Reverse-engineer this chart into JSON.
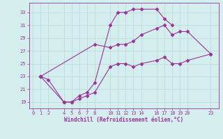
{
  "xlabel": "Windchill (Refroidissement éolien,°C)",
  "bg_color": "#d4eeee",
  "line_color": "#993399",
  "grid_color": "#b8d8d8",
  "xlim": [
    -0.5,
    24
  ],
  "ylim": [
    18.0,
    34.5
  ],
  "xticks": [
    0,
    1,
    2,
    4,
    5,
    6,
    7,
    8,
    10,
    11,
    12,
    13,
    14,
    16,
    17,
    18,
    19,
    20,
    23
  ],
  "yticks": [
    19,
    21,
    23,
    25,
    27,
    29,
    31,
    33
  ],
  "curve1_x": [
    1,
    2,
    4,
    5,
    6,
    7,
    8,
    10,
    11,
    12,
    13,
    14,
    16,
    17,
    18
  ],
  "curve1_y": [
    23,
    22.5,
    19,
    19,
    20,
    20.5,
    22,
    31,
    33,
    33,
    33.5,
    33.5,
    33.5,
    32,
    31
  ],
  "curve2_x": [
    1,
    4,
    5,
    6,
    7,
    8,
    10,
    11,
    12,
    13,
    14,
    16,
    17,
    18,
    19,
    20,
    23
  ],
  "curve2_y": [
    23,
    19,
    19,
    19.5,
    20,
    20.5,
    24.5,
    25,
    25,
    24.5,
    25,
    25.5,
    26,
    25,
    25,
    25.5,
    26.5
  ],
  "curve3_x": [
    1,
    8,
    10,
    11,
    12,
    13,
    14,
    16,
    17,
    18,
    19,
    20,
    23
  ],
  "curve3_y": [
    23,
    28,
    27.5,
    28,
    28,
    28.5,
    29.5,
    30.5,
    31,
    29.5,
    30,
    30,
    26.5
  ]
}
